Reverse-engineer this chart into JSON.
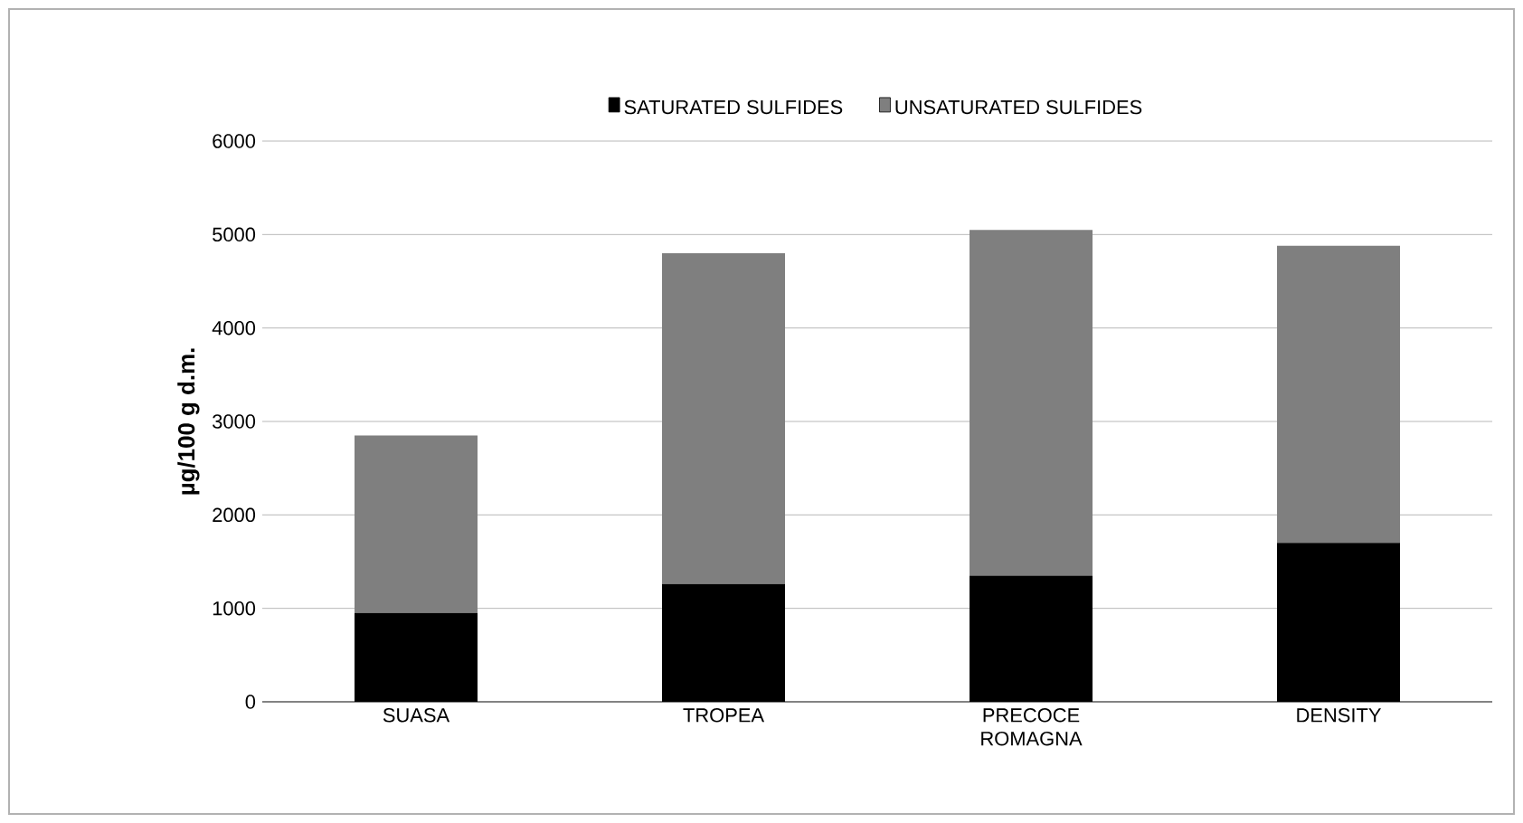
{
  "chart_data": {
    "type": "bar",
    "stacked": true,
    "ylabel": "µg/100 g d.m.",
    "categories": [
      "SUASA",
      "TROPEA",
      "PRECOCE ROMAGNA",
      "DENSITY"
    ],
    "series": [
      {
        "name": "SATURATED SULFIDES",
        "color": "#000000",
        "values": [
          950,
          1260,
          1350,
          1700
        ]
      },
      {
        "name": "UNSATURATED SULFIDES",
        "color": "#7f7f7f",
        "values": [
          1900,
          3540,
          3700,
          3180
        ]
      }
    ],
    "ylim": [
      0,
      6000
    ],
    "yticks": [
      0,
      1000,
      2000,
      3000,
      4000,
      5000,
      6000
    ],
    "grid": "y",
    "legend": "top"
  }
}
